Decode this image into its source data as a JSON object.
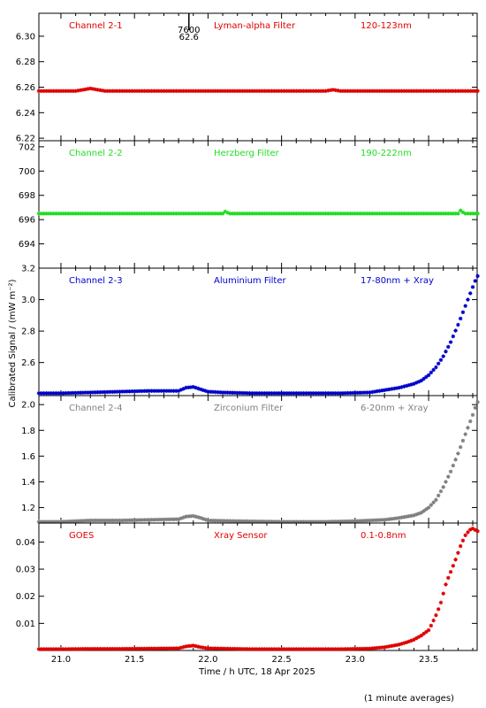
{
  "figure": {
    "ylabel": "Calibrated Signal / (mW m⁻²)",
    "xlabel": "Time / h UTC, 18 Apr 2025",
    "footnote": "(1 minute averages)",
    "x_ticks": [
      "21.0",
      "21.5",
      "22.0",
      "22.5",
      "23.0",
      "23.5"
    ],
    "top_marker": {
      "label1": "7600",
      "label2": "62.6",
      "x": 21.87
    }
  },
  "chart_data": [
    {
      "type": "scatter",
      "panel": "Channel 2-1",
      "labels": [
        "Channel 2-1",
        "Lyman-alpha Filter",
        "120-123nm"
      ],
      "color": "#e00000",
      "xlim": [
        20.85,
        23.83
      ],
      "ylim": [
        6.218,
        6.318
      ],
      "yticks": [
        6.22,
        6.24,
        6.26,
        6.28,
        6.3
      ],
      "yticklabels": [
        "6.22",
        "6.24",
        "6.26",
        "6.28",
        "6.30"
      ],
      "x": [
        20.85,
        21.0,
        21.1,
        21.15,
        21.2,
        21.25,
        21.3,
        21.5,
        21.8,
        22.0,
        22.5,
        22.7,
        22.8,
        22.85,
        22.9,
        23.0,
        23.5,
        23.83
      ],
      "y": [
        6.257,
        6.257,
        6.257,
        6.258,
        6.259,
        6.258,
        6.257,
        6.257,
        6.257,
        6.257,
        6.257,
        6.257,
        6.257,
        6.258,
        6.257,
        6.257,
        6.257,
        6.257
      ]
    },
    {
      "type": "scatter",
      "panel": "Channel 2-2",
      "labels": [
        "Channel 2-2",
        "Herzberg Filter",
        "190-222nm"
      ],
      "color": "#22dd22",
      "xlim": [
        20.85,
        23.83
      ],
      "ylim": [
        692.0,
        702.5
      ],
      "yticks": [
        694,
        696,
        698,
        700,
        702
      ],
      "yticklabels": [
        "694",
        "696",
        "698",
        "700",
        "702"
      ],
      "x": [
        20.85,
        21.0,
        21.5,
        22.0,
        22.1,
        22.12,
        22.14,
        22.2,
        22.5,
        23.0,
        23.5,
        23.7,
        23.72,
        23.74,
        23.83
      ],
      "y": [
        696.5,
        696.5,
        696.5,
        696.5,
        696.5,
        696.7,
        696.5,
        696.5,
        696.5,
        696.5,
        696.5,
        696.5,
        696.8,
        696.5,
        696.5
      ]
    },
    {
      "type": "scatter",
      "panel": "Channel 2-3",
      "labels": [
        "Channel 2-3",
        "Aluminium Filter",
        "17-80nm + Xray"
      ],
      "color": "#0000cc",
      "xlim": [
        20.85,
        23.83
      ],
      "ylim": [
        2.39,
        3.2
      ],
      "yticks": [
        2.6,
        2.8,
        3.0,
        3.2
      ],
      "yticklabels": [
        "2.6",
        "2.8",
        "3.0",
        "3.2"
      ],
      "x": [
        20.85,
        21.0,
        21.2,
        21.4,
        21.6,
        21.8,
        21.85,
        21.9,
        21.95,
        22.0,
        22.1,
        22.3,
        22.5,
        22.7,
        22.9,
        23.1,
        23.2,
        23.3,
        23.4,
        23.45,
        23.5,
        23.55,
        23.6,
        23.65,
        23.7,
        23.75,
        23.8,
        23.83
      ],
      "y": [
        2.405,
        2.405,
        2.41,
        2.415,
        2.42,
        2.42,
        2.44,
        2.445,
        2.43,
        2.415,
        2.41,
        2.405,
        2.405,
        2.405,
        2.405,
        2.41,
        2.425,
        2.44,
        2.465,
        2.485,
        2.52,
        2.57,
        2.64,
        2.73,
        2.84,
        2.96,
        3.08,
        3.15
      ]
    },
    {
      "type": "scatter",
      "panel": "Channel 2-4",
      "labels": [
        "Channel 2-4",
        "Zirconium Filter",
        "6-20nm + Xray"
      ],
      "color": "#808080",
      "xlim": [
        20.85,
        23.83
      ],
      "ylim": [
        1.08,
        2.07
      ],
      "yticks": [
        1.2,
        1.4,
        1.6,
        1.8,
        2.0
      ],
      "yticklabels": [
        "1.2",
        "1.4",
        "1.6",
        "1.8",
        "2.0"
      ],
      "x": [
        20.85,
        21.0,
        21.2,
        21.4,
        21.6,
        21.8,
        21.85,
        21.9,
        21.95,
        22.0,
        22.2,
        22.5,
        22.8,
        23.0,
        23.2,
        23.3,
        23.4,
        23.45,
        23.5,
        23.55,
        23.6,
        23.65,
        23.7,
        23.75,
        23.8,
        23.83
      ],
      "y": [
        1.09,
        1.09,
        1.1,
        1.1,
        1.105,
        1.11,
        1.13,
        1.135,
        1.12,
        1.1,
        1.095,
        1.09,
        1.09,
        1.095,
        1.105,
        1.12,
        1.14,
        1.16,
        1.2,
        1.26,
        1.36,
        1.48,
        1.62,
        1.77,
        1.92,
        2.02
      ]
    },
    {
      "type": "scatter",
      "panel": "GOES",
      "labels": [
        "GOES",
        "Xray Sensor",
        "0.1-0.8nm"
      ],
      "color": "#e00000",
      "xlim": [
        20.85,
        23.83
      ],
      "ylim": [
        0.0,
        0.047
      ],
      "yticks": [
        0.01,
        0.02,
        0.03,
        0.04
      ],
      "yticklabels": [
        "0.01",
        "0.02",
        "0.03",
        "0.04"
      ],
      "x": [
        20.85,
        21.0,
        21.2,
        21.4,
        21.6,
        21.8,
        21.85,
        21.9,
        21.95,
        22.0,
        22.3,
        22.6,
        22.9,
        23.1,
        23.2,
        23.3,
        23.35,
        23.4,
        23.45,
        23.5,
        23.52,
        23.55,
        23.58,
        23.6,
        23.62,
        23.65,
        23.68,
        23.7,
        23.72,
        23.75,
        23.78,
        23.8,
        23.83
      ],
      "y": [
        0.0005,
        0.0005,
        0.0006,
        0.0006,
        0.0007,
        0.0008,
        0.0015,
        0.0018,
        0.0012,
        0.0008,
        0.0005,
        0.0005,
        0.0005,
        0.0007,
        0.0012,
        0.0022,
        0.003,
        0.004,
        0.0055,
        0.0075,
        0.0095,
        0.013,
        0.017,
        0.021,
        0.025,
        0.029,
        0.033,
        0.036,
        0.039,
        0.0425,
        0.0445,
        0.045,
        0.044
      ]
    }
  ]
}
